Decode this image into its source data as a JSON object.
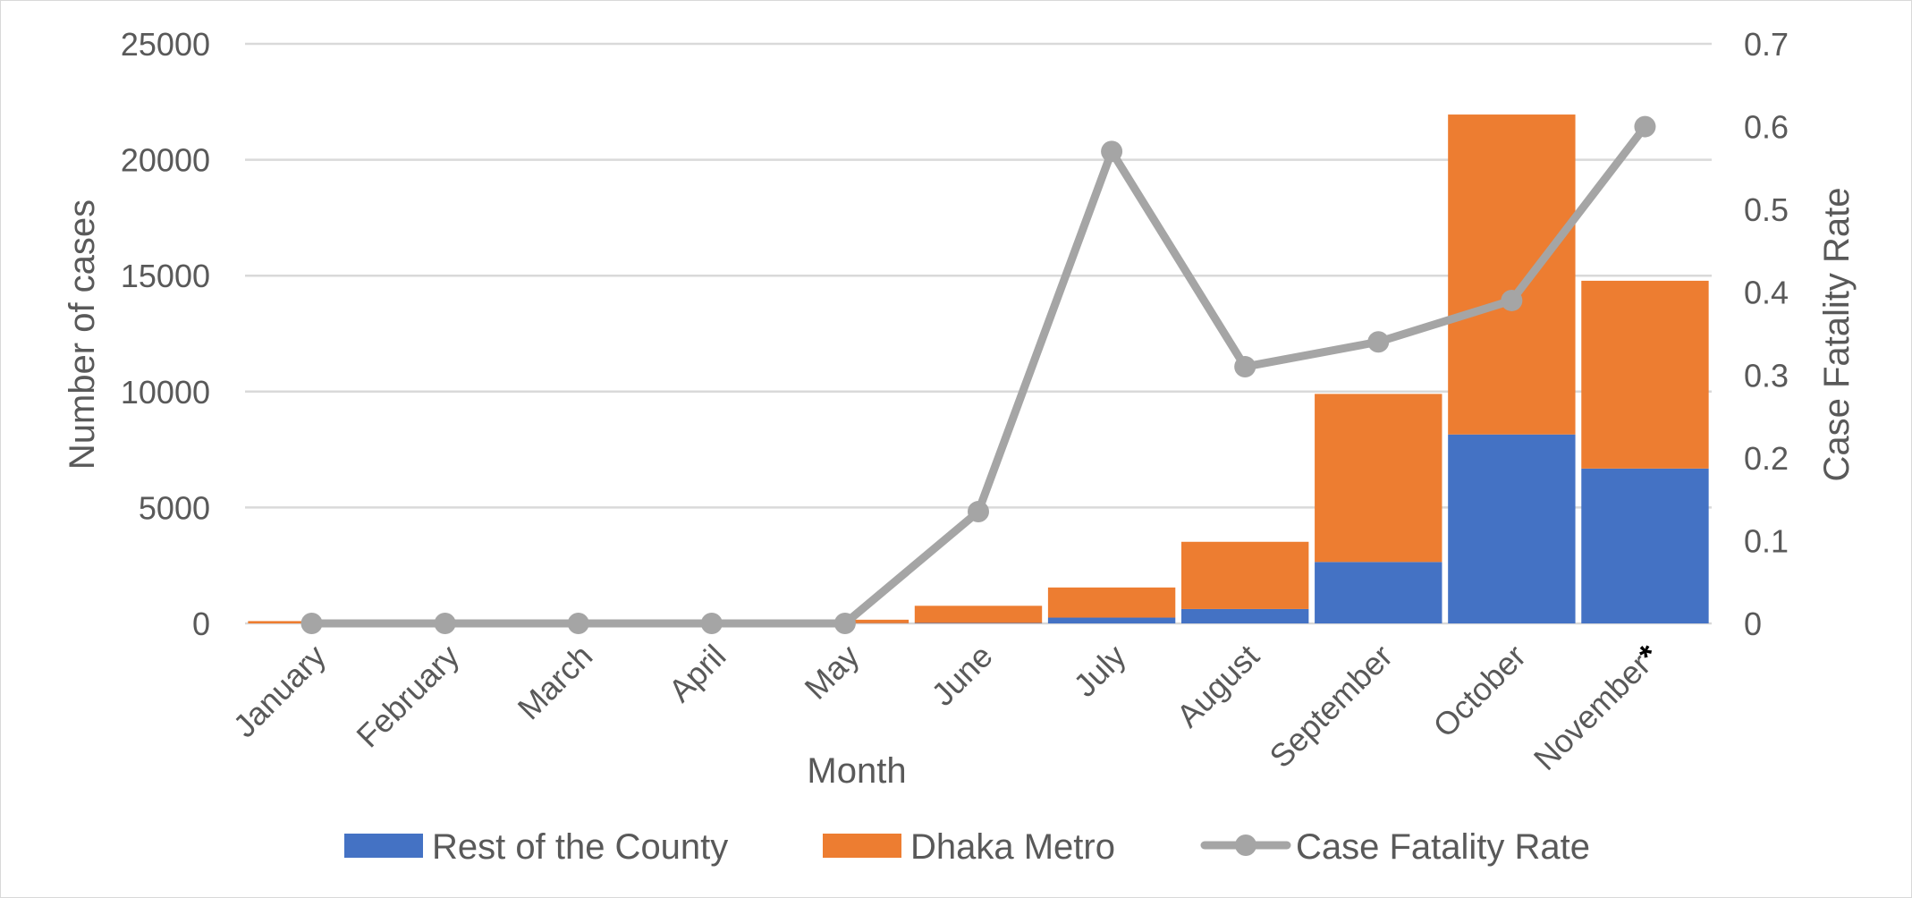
{
  "chart_data": {
    "type": "bar",
    "stacked": true,
    "categories": [
      "January",
      "February",
      "March",
      "April",
      "May",
      "June",
      "July",
      "August",
      "September",
      "October",
      "November"
    ],
    "category_suffix": {
      "index": 10,
      "text": "*"
    },
    "series": [
      {
        "name": "Rest of the County",
        "type": "bar",
        "axis": "left",
        "color": "#4472c4",
        "values": [
          0,
          0,
          0,
          0,
          10,
          20,
          250,
          620,
          2650,
          8150,
          6680
        ]
      },
      {
        "name": "Dhaka Metro",
        "type": "bar",
        "axis": "left",
        "color": "#ed7d31",
        "values": [
          100,
          0,
          0,
          0,
          150,
          740,
          1300,
          2900,
          7250,
          13800,
          8100
        ]
      },
      {
        "name": "Case Fatality Rate",
        "type": "line",
        "axis": "right",
        "color": "#a5a5a5",
        "values": [
          0,
          0,
          0,
          0,
          0,
          0.135,
          0.57,
          0.31,
          0.34,
          0.39,
          0.6
        ]
      }
    ],
    "xlabel": "Month",
    "ylabel": "Number of cases",
    "y2label": "Case Fatality Rate",
    "ylim": [
      0,
      25000
    ],
    "y2lim": [
      0,
      0.7
    ],
    "yticks": [
      "25000",
      "20000",
      "15000",
      "10000",
      "5000",
      "0"
    ],
    "y2ticks": [
      "0.7",
      "0.6",
      "0.5",
      "0.4",
      "0.3",
      "0.2",
      "0.1",
      "0"
    ],
    "grid": true,
    "legend": "bottom"
  }
}
